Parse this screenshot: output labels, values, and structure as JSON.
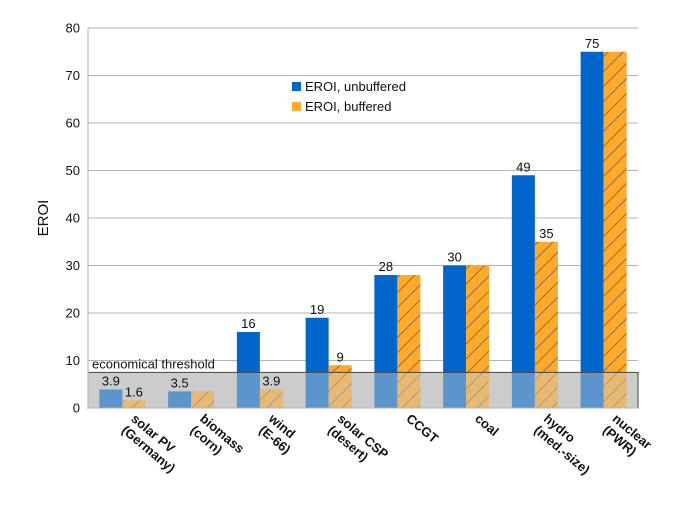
{
  "chart_data": {
    "type": "bar",
    "ylabel": "EROI",
    "ylim": [
      0,
      80
    ],
    "yticks": [
      0,
      10,
      20,
      30,
      40,
      50,
      60,
      70,
      80
    ],
    "grid": "horizontal",
    "legend_position": "upper-center",
    "categories": [
      [
        "solar PV",
        "(Germany)"
      ],
      [
        "biomass",
        "(corn)"
      ],
      [
        "wind",
        "(E-66)"
      ],
      [
        "solar CSP",
        "(desert)"
      ],
      [
        "CCGT"
      ],
      [
        "coal"
      ],
      [
        "hydro",
        "(med.-size)"
      ],
      [
        "nuclear",
        "(PWR)"
      ]
    ],
    "series": [
      {
        "name": "EROI, unbuffered",
        "color": "#0066cc",
        "values": [
          3.9,
          3.5,
          16,
          19,
          28,
          30,
          49,
          75
        ],
        "labels": [
          "3.9",
          "3.5",
          "16",
          "19",
          "28",
          "30",
          "49",
          "75"
        ]
      },
      {
        "name": "EROI, buffered",
        "color": "#ffaa2b",
        "hatched": true,
        "values": [
          1.6,
          3.5,
          3.9,
          9,
          28,
          30,
          35,
          75
        ],
        "labels": [
          "1.6",
          "",
          "3.9",
          "9",
          "",
          "",
          "35",
          ""
        ]
      }
    ],
    "threshold": {
      "value": 7.5,
      "label": "economical threshold",
      "color": "#cccccc"
    }
  }
}
